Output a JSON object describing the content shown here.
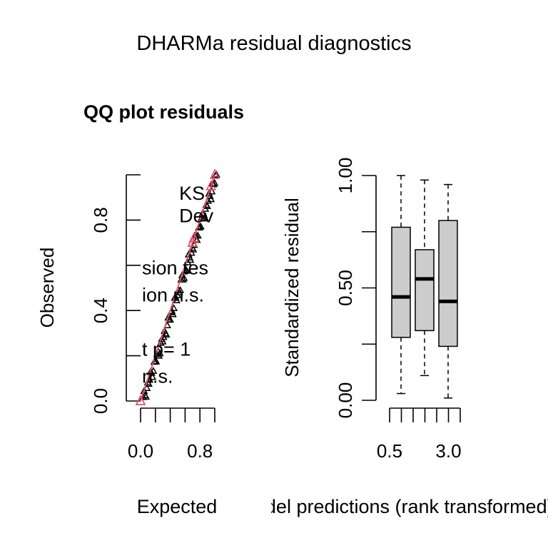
{
  "page_title": "DHARMa residual diagnostics",
  "chart_data": [
    {
      "type": "scatter",
      "title": "QQ plot residuals",
      "xlabel": "Expected",
      "ylabel": "Observed",
      "xlim": [
        0,
        1
      ],
      "ylim": [
        0,
        1
      ],
      "x_ticks": [
        0.0,
        0.2,
        0.4,
        0.6,
        0.8,
        1.0
      ],
      "x_tick_labels": [
        "0.0",
        "",
        "",
        "",
        "0.8",
        ""
      ],
      "y_ticks": [
        0.0,
        0.2,
        0.4,
        0.6,
        0.8,
        1.0
      ],
      "y_tick_labels": [
        "0.0",
        "",
        "0.4",
        "",
        "0.8",
        ""
      ],
      "reference_line": {
        "from": [
          0,
          0
        ],
        "to": [
          1,
          1
        ],
        "color": "#df536b"
      },
      "overlay_texts": [
        {
          "text": "KS",
          "x": 0.52,
          "y": 0.89
        },
        {
          "text": "Dev",
          "x": 0.52,
          "y": 0.79
        },
        {
          "text": "sion tes",
          "x": 0.0,
          "y": 0.56
        },
        {
          "text": "ion n.s.",
          "x": 0.0,
          "y": 0.44
        },
        {
          "text": "t p= 1",
          "x": 0.0,
          "y": 0.2
        },
        {
          "text": "n.s.",
          "x": 0.0,
          "y": 0.08
        }
      ],
      "triangle_points": [
        0.0,
        0.0,
        0.7,
        0.7,
        0.72,
        0.95,
        1.0
      ],
      "point_color": "#000000",
      "triangle_color": "#df536b"
    },
    {
      "type": "box",
      "xlabel": "Model predictions (rank transformed)",
      "ylabel": "Standardized residual",
      "ylim": [
        0,
        1
      ],
      "y_ticks": [
        0.0,
        0.25,
        0.5,
        0.75,
        1.0
      ],
      "y_tick_labels": [
        "0.00",
        "",
        "0.50",
        "",
        "1.00"
      ],
      "x_ticks": [
        0.5,
        1.0,
        1.5,
        2.0,
        2.5,
        3.0,
        3.5
      ],
      "x_tick_labels": [
        "0.5",
        "",
        "",
        "",
        "",
        "3.0",
        ""
      ],
      "boxes": [
        {
          "position": 1,
          "min": 0.03,
          "q1": 0.28,
          "median": 0.46,
          "q3": 0.77,
          "max": 1.0
        },
        {
          "position": 2,
          "min": 0.11,
          "q1": 0.31,
          "median": 0.54,
          "q3": 0.67,
          "max": 0.98
        },
        {
          "position": 3,
          "min": 0.01,
          "q1": 0.24,
          "median": 0.44,
          "q3": 0.8,
          "max": 0.96
        }
      ],
      "box_fill": "#cccccc"
    }
  ]
}
